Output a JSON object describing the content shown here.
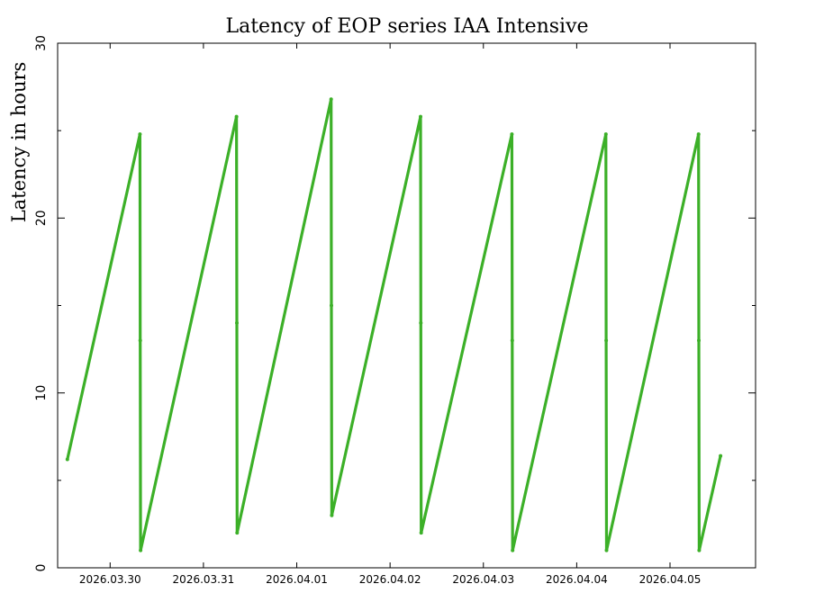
{
  "chart_data": {
    "type": "line",
    "title": "Latency of EOP  series IAA Intensive",
    "xlabel": "",
    "ylabel": "Latency in hours",
    "ylim": [
      0,
      30
    ],
    "xlim": [
      "2026-03-29T10:30",
      "2026-04-05T22:00"
    ],
    "x_ticks": [
      {
        "label": "2026.03.30",
        "date": "2026-03-30T00:00"
      },
      {
        "label": "2026.03.31",
        "date": "2026-03-31T00:00"
      },
      {
        "label": "2026.04.01",
        "date": "2026-04-01T00:00"
      },
      {
        "label": "2026.04.02",
        "date": "2026-04-02T00:00"
      },
      {
        "label": "2026.04.03",
        "date": "2026-04-03T00:00"
      },
      {
        "label": "2026.04.04",
        "date": "2026-04-04T00:00"
      },
      {
        "label": "2026.04.05",
        "date": "2026-04-05T00:00"
      }
    ],
    "y_ticks": [
      0,
      10,
      20,
      30
    ],
    "grid": false,
    "color": "#3cb028",
    "series": [
      {
        "name": "",
        "points": [
          {
            "x": "2026-03-29T13:00",
            "y": 6.2
          },
          {
            "x": "2026-03-30T07:40",
            "y": 24.8
          },
          {
            "x": "2026-03-30T07:45",
            "y": 13.0
          },
          {
            "x": "2026-03-30T07:50",
            "y": 1.0
          },
          {
            "x": "2026-03-31T08:30",
            "y": 25.8
          },
          {
            "x": "2026-03-31T08:35",
            "y": 14.0
          },
          {
            "x": "2026-03-31T08:40",
            "y": 2.0
          },
          {
            "x": "2026-04-01T08:50",
            "y": 26.8
          },
          {
            "x": "2026-04-01T08:55",
            "y": 15.0
          },
          {
            "x": "2026-04-01T09:00",
            "y": 3.0
          },
          {
            "x": "2026-04-02T07:50",
            "y": 25.8
          },
          {
            "x": "2026-04-02T07:55",
            "y": 14.0
          },
          {
            "x": "2026-04-02T08:00",
            "y": 2.0
          },
          {
            "x": "2026-04-03T07:20",
            "y": 24.8
          },
          {
            "x": "2026-04-03T07:25",
            "y": 13.0
          },
          {
            "x": "2026-04-03T07:30",
            "y": 1.0
          },
          {
            "x": "2026-04-04T07:30",
            "y": 24.8
          },
          {
            "x": "2026-04-04T07:35",
            "y": 13.0
          },
          {
            "x": "2026-04-04T07:40",
            "y": 1.0
          },
          {
            "x": "2026-04-05T07:20",
            "y": 24.8
          },
          {
            "x": "2026-04-05T07:25",
            "y": 13.0
          },
          {
            "x": "2026-04-05T07:30",
            "y": 1.0
          },
          {
            "x": "2026-04-05T13:00",
            "y": 6.4
          }
        ]
      }
    ]
  }
}
